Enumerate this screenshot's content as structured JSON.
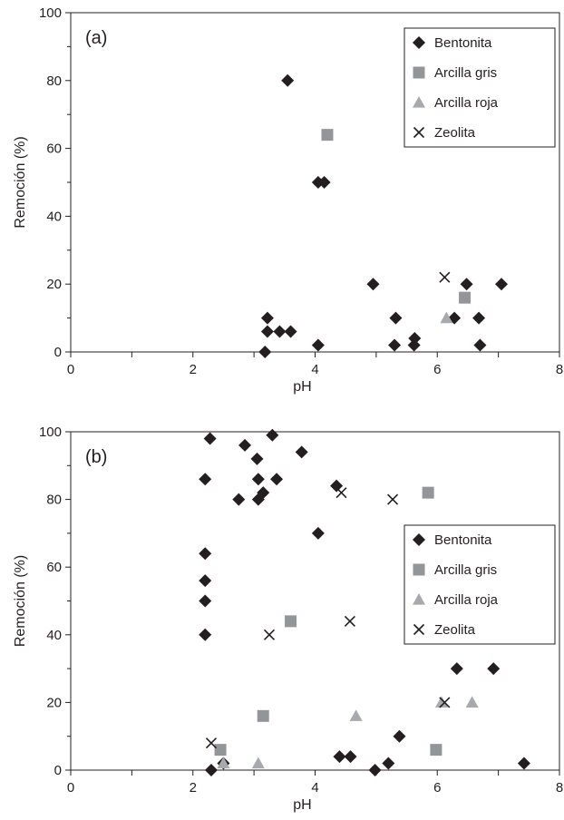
{
  "colors": {
    "Bentonita": "#231f20",
    "Arcilla gris": "#939598",
    "Arcilla roja": "#a7a9ac",
    "Zeolita": "#231f20",
    "axis": "#231f20"
  },
  "chart_data": [
    {
      "type": "scatter",
      "panel_label": "(a)",
      "xlabel": "pH",
      "ylabel": "Remoción (%)",
      "xlim": [
        0,
        8
      ],
      "ylim": [
        0,
        100
      ],
      "x_ticks": [
        "0",
        "2",
        "4",
        "6",
        "8"
      ],
      "y_ticks": [
        "0",
        "20",
        "40",
        "60",
        "80",
        "100"
      ],
      "legend_position": "top-right",
      "grid": false,
      "series": [
        {
          "name": "Bentonita",
          "marker": "diamond",
          "points": [
            [
              3.18,
              0
            ],
            [
              3.22,
              6
            ],
            [
              3.22,
              10
            ],
            [
              3.42,
              6
            ],
            [
              3.6,
              6
            ],
            [
              3.55,
              80
            ],
            [
              4.05,
              2
            ],
            [
              4.05,
              50
            ],
            [
              4.15,
              50
            ],
            [
              4.95,
              20
            ],
            [
              5.3,
              2
            ],
            [
              5.32,
              10
            ],
            [
              5.62,
              2
            ],
            [
              5.63,
              4
            ],
            [
              6.28,
              10
            ],
            [
              6.48,
              20
            ],
            [
              6.68,
              10
            ],
            [
              6.7,
              2
            ],
            [
              7.05,
              20
            ]
          ]
        },
        {
          "name": "Arcilla gris",
          "marker": "square",
          "points": [
            [
              4.2,
              64
            ],
            [
              6.45,
              16
            ]
          ]
        },
        {
          "name": "Arcilla roja",
          "marker": "triangle",
          "points": [
            [
              6.15,
              10
            ]
          ]
        },
        {
          "name": "Zeolita",
          "marker": "x",
          "points": [
            [
              6.12,
              22
            ]
          ]
        }
      ]
    },
    {
      "type": "scatter",
      "panel_label": "(b)",
      "xlabel": "pH",
      "ylabel": "Remoción (%)",
      "xlim": [
        0,
        8
      ],
      "ylim": [
        0,
        100
      ],
      "x_ticks": [
        "0",
        "2",
        "4",
        "6",
        "8"
      ],
      "y_ticks": [
        "0",
        "20",
        "40",
        "60",
        "80",
        "100"
      ],
      "legend_position": "right",
      "grid": false,
      "series": [
        {
          "name": "Bentonita",
          "marker": "diamond",
          "points": [
            [
              2.2,
              86
            ],
            [
              2.28,
              98
            ],
            [
              2.2,
              64
            ],
            [
              2.2,
              56
            ],
            [
              2.2,
              50
            ],
            [
              2.2,
              40
            ],
            [
              2.3,
              0
            ],
            [
              2.5,
              2
            ],
            [
              2.75,
              80
            ],
            [
              2.85,
              96
            ],
            [
              3.05,
              92
            ],
            [
              3.07,
              86
            ],
            [
              3.07,
              80
            ],
            [
              3.15,
              82
            ],
            [
              3.3,
              99
            ],
            [
              3.37,
              86
            ],
            [
              3.78,
              94
            ],
            [
              4.05,
              70
            ],
            [
              4.35,
              84
            ],
            [
              4.4,
              4
            ],
            [
              4.58,
              4
            ],
            [
              4.98,
              0
            ],
            [
              5.2,
              2
            ],
            [
              5.38,
              10
            ],
            [
              6.32,
              30
            ],
            [
              6.92,
              30
            ],
            [
              7.42,
              2
            ]
          ]
        },
        {
          "name": "Arcilla gris",
          "marker": "square",
          "points": [
            [
              2.45,
              6
            ],
            [
              3.15,
              16
            ],
            [
              3.6,
              44
            ],
            [
              5.85,
              82
            ],
            [
              5.98,
              6
            ]
          ]
        },
        {
          "name": "Arcilla roja",
          "marker": "triangle",
          "points": [
            [
              2.5,
              2
            ],
            [
              3.07,
              2
            ],
            [
              4.67,
              16
            ],
            [
              6.07,
              20
            ],
            [
              6.57,
              20
            ]
          ]
        },
        {
          "name": "Zeolita",
          "marker": "x",
          "points": [
            [
              2.3,
              8
            ],
            [
              3.25,
              40
            ],
            [
              4.43,
              82
            ],
            [
              4.57,
              44
            ],
            [
              5.27,
              80
            ],
            [
              6.12,
              20
            ]
          ]
        }
      ]
    }
  ]
}
